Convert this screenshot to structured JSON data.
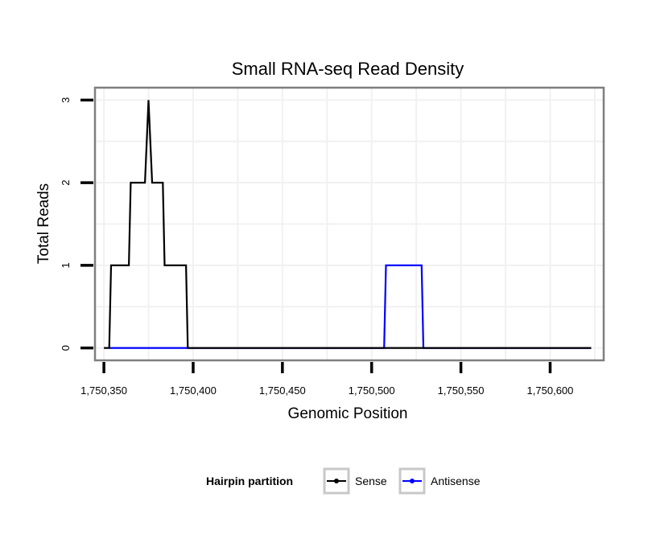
{
  "chart_data": {
    "type": "line",
    "title": "Small RNA-seq Read Density",
    "xlabel": "Genomic Position",
    "ylabel": "Total Reads",
    "xlim": [
      1750345,
      1750630
    ],
    "ylim": [
      -0.15,
      3.15
    ],
    "x_ticks": [
      1750350,
      1750400,
      1750450,
      1750500,
      1750550,
      1750600
    ],
    "x_tick_labels": [
      "1,750,350",
      "1,750,400",
      "1,750,450",
      "1,750,500",
      "1,750,550",
      "1,750,600"
    ],
    "y_ticks": [
      0,
      1,
      2,
      3
    ],
    "y_tick_labels": [
      "0",
      "1",
      "2",
      "3"
    ],
    "grid": true,
    "legend": {
      "title": "Hairpin partition",
      "position": "bottom",
      "entries": [
        {
          "label": "Sense",
          "color": "#000000"
        },
        {
          "label": "Antisense",
          "color": "#0000ff"
        }
      ]
    },
    "series": [
      {
        "name": "Antisense",
        "color": "#0000ff",
        "x": [
          1750353,
          1750397,
          1750397,
          1750507,
          1750508,
          1750528,
          1750529,
          1750623
        ],
        "y": [
          0,
          0,
          0,
          0,
          1,
          1,
          0,
          0
        ]
      },
      {
        "name": "Sense",
        "color": "#000000",
        "x": [
          1750350,
          1750353,
          1750354,
          1750364,
          1750365,
          1750373,
          1750375,
          1750377,
          1750383,
          1750384,
          1750396,
          1750397,
          1750623
        ],
        "y": [
          0,
          0,
          1,
          1,
          2,
          2,
          3,
          2,
          2,
          1,
          1,
          0,
          0
        ]
      }
    ]
  }
}
